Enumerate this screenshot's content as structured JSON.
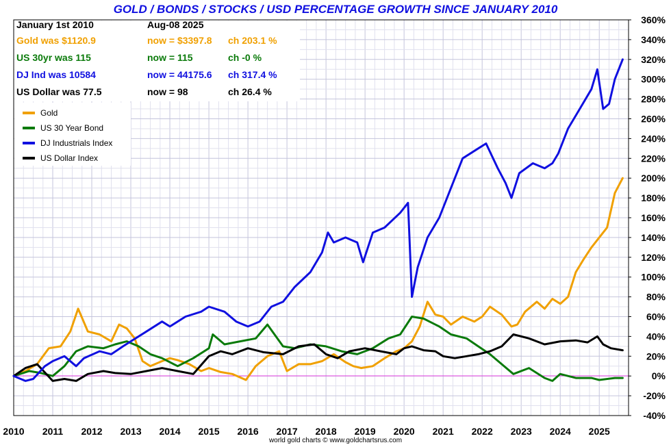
{
  "chart_data": {
    "type": "line",
    "title": "GOLD / BONDS / STOCKS / USD PERCENTAGE GROWTH SINCE JANUARY 2010",
    "credit": "world gold charts © www.goldchartsrus.com",
    "x_ticks": [
      "2010",
      "2011",
      "2012",
      "2013",
      "2014",
      "2015",
      "2016",
      "2017",
      "2018",
      "2019",
      "2020",
      "2021",
      "2022",
      "2023",
      "2024",
      "2025"
    ],
    "y_ticks": [
      "360%",
      "340%",
      "320%",
      "300%",
      "280%",
      "260%",
      "240%",
      "220%",
      "200%",
      "180%",
      "160%",
      "140%",
      "120%",
      "100%",
      "80%",
      "60%",
      "40%",
      "20%",
      "0%",
      "-20%",
      "-40%"
    ],
    "xlim": [
      2010,
      2025.75
    ],
    "ylim": [
      -40,
      360
    ],
    "grid": true,
    "legend_position": "top-left",
    "info": {
      "start_header": "January 1st 2010",
      "end_header": "Aug-08  2025",
      "rows": [
        {
          "was": "Gold was $1120.9",
          "now": "now = $3397.8",
          "ch": "ch 203.1 %",
          "color": "#f0a000"
        },
        {
          "was": "US 30yr was 115",
          "now": "now = 115",
          "ch": "ch -0 %",
          "color": "#0a7a0a"
        },
        {
          "was": "DJ Ind was 10584",
          "now": "now = 44175.6",
          "ch": "ch 317.4 %",
          "color": "#1010e0"
        },
        {
          "was": "US Dollar was 77.5",
          "now": "now = 98",
          "ch": "ch 26.4 %",
          "color": "#000000"
        }
      ]
    },
    "series": [
      {
        "name": "Gold",
        "color": "#f0a000",
        "x": [
          2010,
          2010.3,
          2010.6,
          2010.9,
          2011.2,
          2011.45,
          2011.65,
          2011.9,
          2012.2,
          2012.5,
          2012.7,
          2012.9,
          2013.1,
          2013.3,
          2013.5,
          2013.8,
          2014.0,
          2014.2,
          2014.5,
          2014.8,
          2015.0,
          2015.3,
          2015.6,
          2015.95,
          2016.2,
          2016.5,
          2016.8,
          2017.0,
          2017.3,
          2017.6,
          2017.9,
          2018.2,
          2018.5,
          2018.7,
          2018.9,
          2019.2,
          2019.5,
          2019.8,
          2020.0,
          2020.2,
          2020.4,
          2020.6,
          2020.8,
          2021.0,
          2021.2,
          2021.5,
          2021.8,
          2022.0,
          2022.2,
          2022.5,
          2022.75,
          2022.9,
          2023.1,
          2023.4,
          2023.6,
          2023.8,
          2024.0,
          2024.2,
          2024.4,
          2024.6,
          2024.8,
          2025.0,
          2025.2,
          2025.4,
          2025.6
        ],
        "y": [
          0,
          5,
          12,
          28,
          30,
          45,
          68,
          45,
          42,
          35,
          52,
          48,
          38,
          15,
          10,
          15,
          18,
          16,
          12,
          5,
          8,
          4,
          2,
          -4,
          10,
          20,
          25,
          5,
          12,
          12,
          15,
          22,
          14,
          10,
          8,
          10,
          18,
          25,
          28,
          35,
          50,
          75,
          62,
          60,
          52,
          60,
          55,
          60,
          70,
          62,
          50,
          52,
          65,
          75,
          68,
          78,
          73,
          80,
          105,
          118,
          130,
          140,
          150,
          185,
          200
        ]
      },
      {
        "name": "US 30 Year Bond",
        "color": "#0a7a0a",
        "x": [
          2010,
          2010.4,
          2010.7,
          2011.0,
          2011.3,
          2011.6,
          2011.9,
          2012.3,
          2012.6,
          2012.9,
          2013.2,
          2013.5,
          2013.8,
          2014.2,
          2014.6,
          2015.0,
          2015.1,
          2015.4,
          2015.8,
          2016.2,
          2016.5,
          2016.9,
          2017.2,
          2017.6,
          2018.0,
          2018.4,
          2018.8,
          2019.2,
          2019.6,
          2019.9,
          2020.2,
          2020.5,
          2020.9,
          2021.2,
          2021.6,
          2021.9,
          2022.2,
          2022.5,
          2022.8,
          2023.2,
          2023.6,
          2023.8,
          2024.0,
          2024.4,
          2024.8,
          2025.0,
          2025.4,
          2025.6
        ],
        "y": [
          0,
          5,
          3,
          0,
          10,
          25,
          30,
          28,
          32,
          35,
          30,
          22,
          18,
          10,
          18,
          28,
          42,
          32,
          35,
          38,
          52,
          30,
          28,
          32,
          30,
          25,
          22,
          28,
          38,
          42,
          60,
          58,
          50,
          42,
          38,
          30,
          22,
          12,
          2,
          8,
          -2,
          -5,
          2,
          -2,
          -2,
          -4,
          -2,
          -2
        ]
      },
      {
        "name": "DJ Industrials Index",
        "color": "#1010e0",
        "x": [
          2010,
          2010.3,
          2010.5,
          2010.8,
          2011.0,
          2011.3,
          2011.6,
          2011.8,
          2012.2,
          2012.5,
          2012.8,
          2013.0,
          2013.4,
          2013.8,
          2014.0,
          2014.4,
          2014.8,
          2015.0,
          2015.4,
          2015.7,
          2016.0,
          2016.3,
          2016.6,
          2016.9,
          2017.2,
          2017.6,
          2017.9,
          2018.05,
          2018.2,
          2018.5,
          2018.8,
          2018.95,
          2019.2,
          2019.5,
          2019.9,
          2020.1,
          2020.2,
          2020.35,
          2020.6,
          2020.9,
          2021.2,
          2021.5,
          2021.9,
          2022.1,
          2022.4,
          2022.6,
          2022.75,
          2022.95,
          2023.3,
          2023.6,
          2023.8,
          2023.95,
          2024.2,
          2024.5,
          2024.8,
          2024.95,
          2025.1,
          2025.25,
          2025.4,
          2025.6
        ],
        "y": [
          0,
          -5,
          -3,
          10,
          15,
          20,
          10,
          18,
          25,
          22,
          30,
          35,
          45,
          55,
          50,
          60,
          65,
          70,
          65,
          55,
          50,
          55,
          70,
          75,
          90,
          105,
          125,
          145,
          135,
          140,
          135,
          115,
          145,
          150,
          165,
          175,
          80,
          110,
          140,
          160,
          190,
          220,
          230,
          235,
          210,
          195,
          180,
          205,
          215,
          210,
          215,
          225,
          250,
          270,
          290,
          310,
          270,
          275,
          300,
          320
        ]
      },
      {
        "name": "US Dollar Index",
        "color": "#000000",
        "x": [
          2010,
          2010.3,
          2010.6,
          2011.0,
          2011.3,
          2011.6,
          2011.9,
          2012.3,
          2012.6,
          2013.0,
          2013.4,
          2013.8,
          2014.2,
          2014.6,
          2015.0,
          2015.3,
          2015.6,
          2016.0,
          2016.4,
          2016.9,
          2017.3,
          2017.7,
          2018.0,
          2018.3,
          2018.6,
          2019.0,
          2019.4,
          2019.8,
          2020.0,
          2020.2,
          2020.5,
          2020.8,
          2021.0,
          2021.3,
          2021.6,
          2021.9,
          2022.2,
          2022.5,
          2022.8,
          2023.2,
          2023.6,
          2024.0,
          2024.4,
          2024.7,
          2024.95,
          2025.1,
          2025.3,
          2025.6
        ],
        "y": [
          0,
          8,
          12,
          -5,
          -3,
          -5,
          2,
          5,
          3,
          2,
          5,
          8,
          5,
          2,
          20,
          25,
          22,
          28,
          24,
          22,
          30,
          32,
          22,
          18,
          25,
          28,
          25,
          22,
          28,
          30,
          26,
          25,
          20,
          18,
          20,
          22,
          25,
          30,
          42,
          38,
          32,
          35,
          36,
          34,
          40,
          32,
          28,
          26
        ]
      }
    ]
  }
}
